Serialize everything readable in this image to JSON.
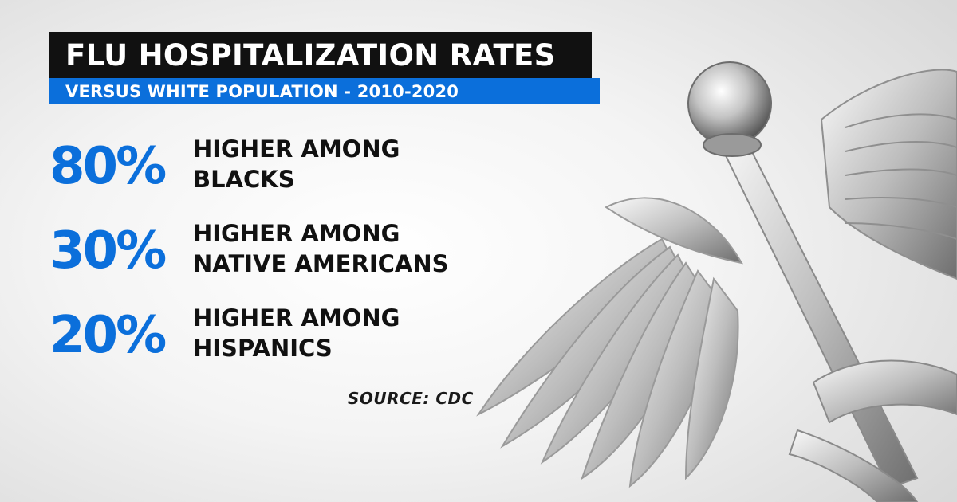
{
  "title": "FLU HOSPITALIZATION RATES",
  "subtitle": "VERSUS WHITE POPULATION - 2010-2020",
  "stats": [
    {
      "percent": "80%",
      "line1": "HIGHER AMONG",
      "line2": "BLACKS"
    },
    {
      "percent": "30%",
      "line1": "HIGHER AMONG",
      "line2": "NATIVE AMERICANS"
    },
    {
      "percent": "20%",
      "line1": "HIGHER AMONG",
      "line2": "HISPANICS"
    }
  ],
  "source": "SOURCE: CDC",
  "background_icon": "caduceus-icon",
  "colors": {
    "accent": "#0b6fdb",
    "title_bg": "#111111",
    "text": "#111111"
  }
}
